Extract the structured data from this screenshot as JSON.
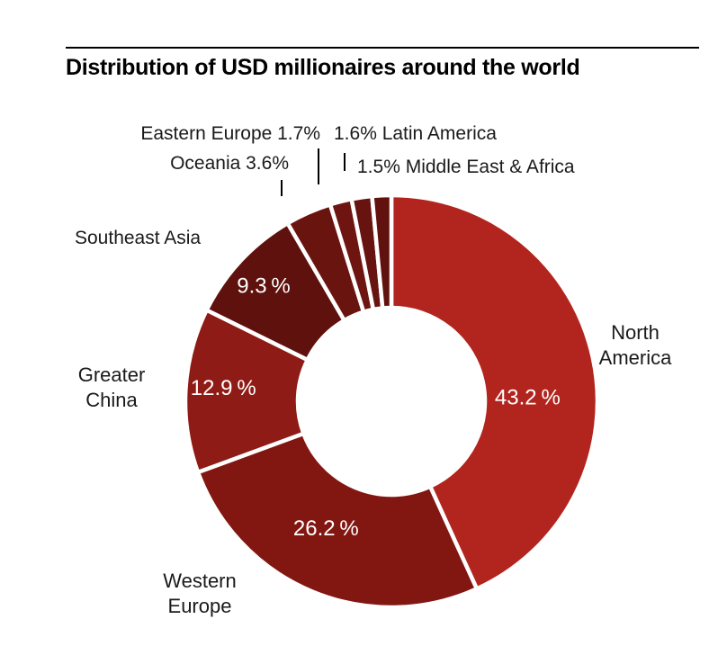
{
  "chart_data": {
    "type": "pie",
    "donut": true,
    "title": "Distribution of USD millionaires around the world",
    "legend_position": "outside-callouts",
    "slices": [
      {
        "label": "North America",
        "value": 43.2,
        "pct_label": "43.2 %",
        "color": "#b2251e"
      },
      {
        "label": "Western Europe",
        "value": 26.2,
        "pct_label": "26.2 %",
        "color": "#821712"
      },
      {
        "label": "Greater China",
        "value": 12.9,
        "pct_label": "12.9 %",
        "color": "#8e1b15"
      },
      {
        "label": "Southeast Asia",
        "value": 9.3,
        "pct_label": "9.3 %",
        "color": "#5e110d"
      },
      {
        "label": "Oceania",
        "value": 3.6,
        "pct_label": null,
        "color": "#6a1410"
      },
      {
        "label": "Eastern Europe",
        "value": 1.7,
        "pct_label": null,
        "color": "#6e1511"
      },
      {
        "label": "Latin America",
        "value": 1.6,
        "pct_label": null,
        "color": "#671310"
      },
      {
        "label": "Middle East & Africa",
        "value": 1.5,
        "pct_label": null,
        "color": "#62120e"
      }
    ],
    "region_labels": {
      "north_america": "North America",
      "western_europe": "Western Europe",
      "greater_china": "Greater China",
      "southeast_asia": "Southeast Asia"
    },
    "callouts": {
      "eastern_europe": "Eastern Europe 1.7%",
      "oceania": "Oceania 3.6%",
      "latin_america": "1.6% Latin America",
      "middle_east_africa": "1.5% Middle East & Africa"
    },
    "colors": {
      "gap": "#ffffff",
      "leader_line": "#000000",
      "value_text": "#ffffff",
      "label_text": "#1a1a1a"
    }
  }
}
